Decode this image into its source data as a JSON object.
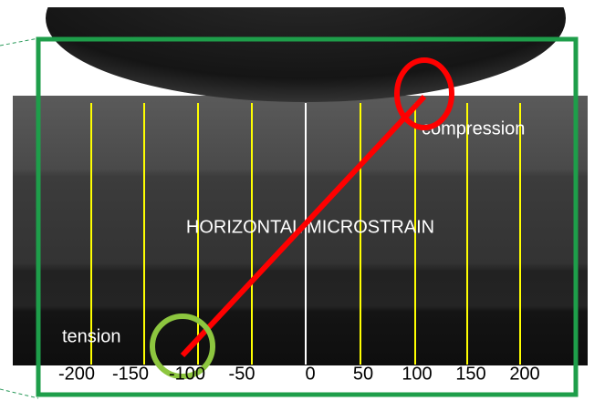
{
  "labels": {
    "compression": "compression",
    "center": "HORIZONTAL MICROSTRAIN",
    "tension": "tension"
  },
  "scale": [
    "-200",
    "-150",
    "-100",
    "-50",
    "0",
    "50",
    "100",
    "150",
    "200"
  ]
}
